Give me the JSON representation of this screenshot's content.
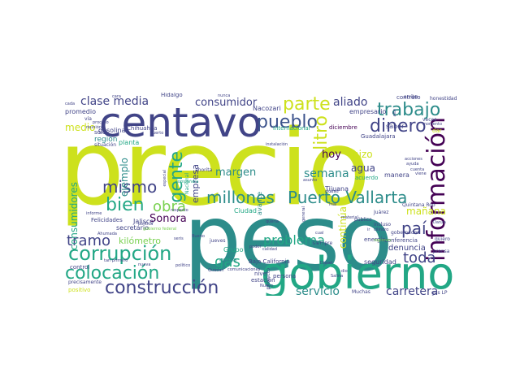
{
  "colors": {
    "background": "#ffffff",
    "palette": [
      "#cde11d",
      "#2c8c8a",
      "#414487",
      "#440154",
      "#22a785",
      "#7ad151",
      "#21918c",
      "#fde725"
    ]
  },
  "words": [
    {
      "t": "precio",
      "c": "#cde11d"
    },
    {
      "t": "peso",
      "c": "#2c8c8a"
    },
    {
      "t": "gobierno",
      "c": "#22a785"
    },
    {
      "t": "centavo",
      "c": "#414487"
    },
    {
      "t": "información",
      "c": "#440154"
    },
    {
      "t": "corrupción",
      "c": "#22a785"
    },
    {
      "t": "construcción",
      "c": "#414487"
    },
    {
      "t": "Puerto Vallarta",
      "c": "#2c8c8a"
    },
    {
      "t": "millones",
      "c": "#2c8c8a"
    },
    {
      "t": "colocación",
      "c": "#22a785"
    },
    {
      "t": "trabajo",
      "c": "#2c8c8a"
    },
    {
      "t": "dinero",
      "c": "#414487"
    },
    {
      "t": "pueblo",
      "c": "#3b528b"
    },
    {
      "t": "parte",
      "c": "#cde11d"
    },
    {
      "t": "litro",
      "c": "#cde11d"
    },
    {
      "t": "gente",
      "c": "#22a785"
    },
    {
      "t": "bien",
      "c": "#22a785"
    },
    {
      "t": "mismo",
      "c": "#414487"
    },
    {
      "t": "tramo",
      "c": "#414487"
    },
    {
      "t": "obra",
      "c": "#7ad151"
    },
    {
      "t": "paí",
      "c": "#414487"
    },
    {
      "t": "toda",
      "c": "#414487"
    },
    {
      "t": "problema",
      "c": "#22a785"
    },
    {
      "t": "gas",
      "c": "#22a785"
    },
    {
      "t": "carretera",
      "c": "#414487"
    },
    {
      "t": "servicio",
      "c": "#2c8c8a"
    },
    {
      "t": "clase media",
      "c": "#414487"
    },
    {
      "t": "consumidor",
      "c": "#414487"
    },
    {
      "t": "aliado",
      "c": "#414487"
    },
    {
      "t": "hoy",
      "c": "#440154"
    },
    {
      "t": "semana",
      "c": "#2c8c8a"
    },
    {
      "t": "margen",
      "c": "#2c8c8a"
    },
    {
      "t": "agua",
      "c": "#414487"
    },
    {
      "t": "hizo",
      "c": "#cde11d"
    },
    {
      "t": "continúa",
      "c": "#cde11d"
    },
    {
      "t": "mañana",
      "c": "#cde11d"
    },
    {
      "t": "Sonora",
      "c": "#440154"
    },
    {
      "t": "kilómetro",
      "c": "#7ad151"
    },
    {
      "t": "medio",
      "c": "#cde11d"
    },
    {
      "t": "empresa",
      "c": "#414487"
    },
    {
      "t": "ejemplo",
      "c": "#2c8c8a"
    },
    {
      "t": "consumidores",
      "c": "#22a785"
    },
    {
      "t": "denuncia",
      "c": "#414487"
    },
    {
      "t": "energía",
      "c": "#414487"
    },
    {
      "t": "Tijuana",
      "c": "#414487"
    },
    {
      "t": "empresario",
      "c": "#414487"
    },
    {
      "t": "Nacozari",
      "c": "#414487"
    },
    {
      "t": "promedio",
      "c": "#414487"
    },
    {
      "t": "gasolina",
      "c": "#414487"
    },
    {
      "t": "Chihuahua",
      "c": "#414487"
    },
    {
      "t": "región",
      "c": "#2c8c8a"
    },
    {
      "t": "sólo",
      "c": "#414487"
    },
    {
      "t": "situación",
      "c": "#414487"
    },
    {
      "t": "planta",
      "c": "#22a785"
    },
    {
      "t": "avance",
      "c": "#2c8c8a"
    },
    {
      "t": "Ciudad",
      "c": "#22a785"
    },
    {
      "t": "nivel",
      "c": "#414487"
    },
    {
      "t": "persona",
      "c": "#414487"
    },
    {
      "t": "diciembre",
      "c": "#440154"
    },
    {
      "t": "internacional",
      "c": "#22a785"
    },
    {
      "t": "Guadalajara",
      "c": "#414487"
    },
    {
      "t": "saber",
      "c": "#414487"
    },
    {
      "t": "manera",
      "c": "#414487"
    },
    {
      "t": "acuerdo",
      "c": "#22a785"
    },
    {
      "t": "contrato",
      "c": "#414487"
    },
    {
      "t": "honestidad",
      "c": "#414487"
    },
    {
      "t": "arriba",
      "c": "#414487"
    },
    {
      "t": "veces",
      "c": "#414487"
    },
    {
      "t": "Hidalgo",
      "c": "#414487"
    },
    {
      "t": "Felicidades",
      "c": "#414487"
    },
    {
      "t": "secretario",
      "c": "#414487"
    },
    {
      "t": "Jalisco",
      "c": "#414487"
    },
    {
      "t": "Grupo",
      "c": "#22a785"
    },
    {
      "t": "acaba",
      "c": "#2c8c8a"
    },
    {
      "t": "Baja California",
      "c": "#414487"
    },
    {
      "t": "estación",
      "c": "#414487"
    },
    {
      "t": "seguridad",
      "c": "#414487"
    },
    {
      "t": "conferencia",
      "c": "#414487"
    },
    {
      "t": "gobernador",
      "c": "#414487"
    },
    {
      "t": "control",
      "c": "#414487"
    },
    {
      "t": "precisamente",
      "c": "#414487"
    },
    {
      "t": "positivo",
      "c": "#cde11d"
    },
    {
      "t": "Muchas",
      "c": "#414487"
    },
    {
      "t": "jueves",
      "c": "#414487"
    },
    {
      "t": "siempre",
      "c": "#414487"
    },
    {
      "t": "público",
      "c": "#414487"
    },
    {
      "t": "Juárez",
      "c": "#414487"
    },
    {
      "t": "incluso",
      "c": "#414487"
    },
    {
      "t": "dar",
      "c": "#cde11d"
    },
    {
      "t": "gas LP",
      "c": "#414487"
    },
    {
      "t": "quiero",
      "c": "#414487"
    },
    {
      "t": "prensa",
      "c": "#414487"
    },
    {
      "t": "proyecto",
      "c": "#414487"
    },
    {
      "t": "compañera",
      "c": "#22a785"
    },
    {
      "t": "ahorita",
      "c": "#414487"
    },
    {
      "t": "Nacional",
      "c": "#22a785"
    },
    {
      "t": "especial",
      "c": "#414487"
    },
    {
      "t": "asunto",
      "c": "#414487"
    },
    {
      "t": "cada",
      "c": "#414487"
    },
    {
      "t": "vía",
      "c": "#414487"
    },
    {
      "t": "cara",
      "c": "#414487"
    },
    {
      "t": "nunca",
      "c": "#414487"
    },
    {
      "t": "Puerto",
      "c": "#414487"
    },
    {
      "t": "informe",
      "c": "#414487"
    },
    {
      "t": "respecto",
      "c": "#414487"
    },
    {
      "t": "política",
      "c": "#414487"
    },
    {
      "t": "Ahumada",
      "c": "#414487"
    },
    {
      "t": "queria",
      "c": "#414487"
    },
    {
      "t": "mal",
      "c": "#414487"
    },
    {
      "t": "Salina",
      "c": "#414487"
    },
    {
      "t": "dio",
      "c": "#414487"
    },
    {
      "t": "Quintana Roo",
      "c": "#414487"
    },
    {
      "t": "alto",
      "c": "#414487"
    },
    {
      "t": "acciones",
      "c": "#414487"
    },
    {
      "t": "ayuda",
      "c": "#414487"
    },
    {
      "t": "cuenta",
      "c": "#414487"
    },
    {
      "t": "momento",
      "c": "#414487"
    },
    {
      "t": "viene",
      "c": "#414487"
    },
    {
      "t": "proceso",
      "c": "#414487"
    },
    {
      "t": "reunión",
      "c": "#414487"
    },
    {
      "t": "instalación",
      "c": "#414487"
    },
    {
      "t": "comunicaciones",
      "c": "#414487"
    },
    {
      "t": "cilindro",
      "c": "#414487"
    },
    {
      "t": "regiones",
      "c": "#7ad151"
    },
    {
      "t": "Danza",
      "c": "#414487"
    },
    {
      "t": "ir",
      "c": "#414487"
    },
    {
      "t": "Diésel",
      "c": "#414487"
    },
    {
      "t": "poder",
      "c": "#414487"
    },
    {
      "t": "Nuevo",
      "c": "#414487"
    },
    {
      "t": "gobierno federal",
      "c": "#7ad151"
    },
    {
      "t": "tan primero",
      "c": "#414487"
    },
    {
      "t": "seris",
      "c": "#414487"
    },
    {
      "t": "político",
      "c": "#414487"
    },
    {
      "t": "nueva",
      "c": "#414487"
    },
    {
      "t": "Quedan",
      "c": "#414487"
    },
    {
      "t": "material",
      "c": "#414487"
    },
    {
      "t": "cual",
      "c": "#414487"
    },
    {
      "t": "calidad",
      "c": "#414487"
    },
    {
      "t": "general",
      "c": "#414487"
    },
    {
      "t": "Bueno",
      "c": "#414487"
    },
    {
      "t": "ciudad",
      "c": "#414487"
    }
  ]
}
